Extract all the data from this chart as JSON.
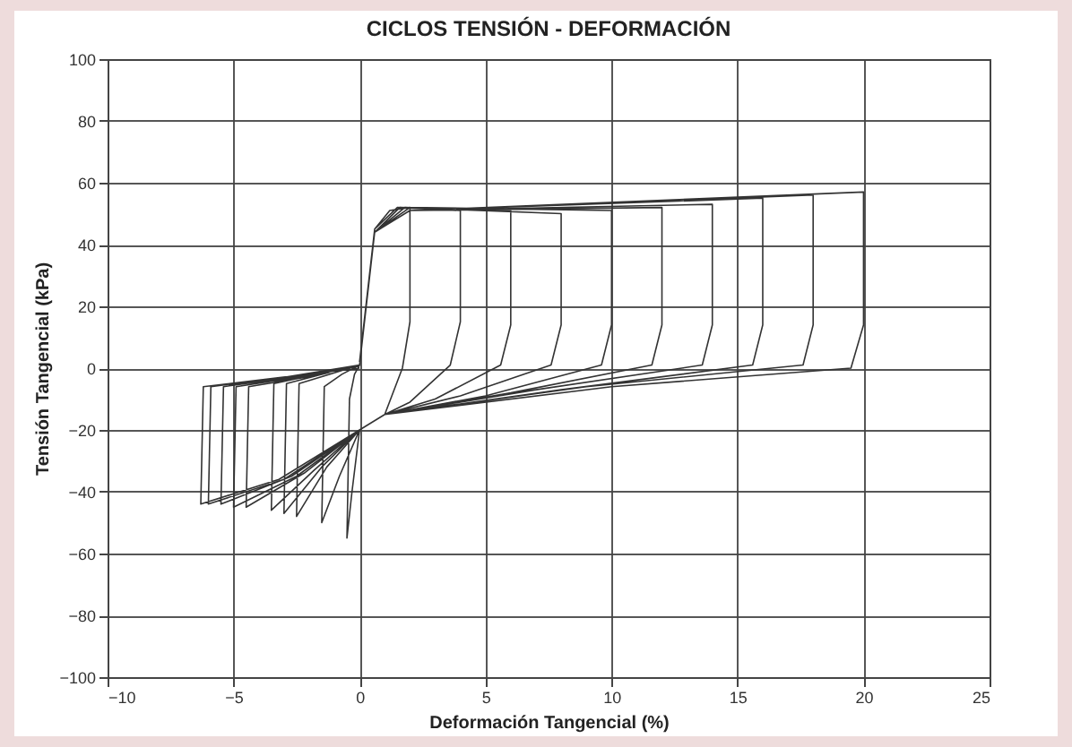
{
  "chart_data": {
    "type": "line",
    "title": "CICLOS TENSIÓN - DEFORMACIÓN",
    "xlabel": "Deformación  Tangencial (%)",
    "ylabel": "Tensión Tangencial (kPa)",
    "xlim": [
      -10,
      25
    ],
    "xticks": [
      -10,
      -5,
      0,
      5,
      10,
      15,
      20,
      25
    ],
    "ylim": [
      -100,
      100
    ],
    "yticks": [
      -100,
      -80,
      -60,
      -40,
      -20,
      0,
      20,
      40,
      60,
      80,
      100
    ],
    "grid": true,
    "series": [
      {
        "color": "#333333",
        "x": [
          0,
          0.6,
          1.2,
          2,
          2,
          1.7,
          1,
          0,
          -0.3,
          -0.5,
          -0.4,
          -0.2,
          0,
          0.6,
          1.5,
          4,
          4,
          3.6,
          2,
          1,
          0,
          -0.8,
          -1.5,
          -1.4,
          -0.7,
          0,
          0.6,
          1.6,
          6,
          6,
          5.6,
          3,
          1,
          0,
          -1.3,
          -2.5,
          -2.4,
          -1.2,
          0,
          0.6,
          1.8,
          8,
          8,
          7.6,
          4,
          1,
          0,
          -1.5,
          -3,
          -2.9,
          -1.5,
          0,
          0.6,
          2,
          10,
          10,
          9.6,
          5,
          1,
          0,
          -1.8,
          -3.5,
          -3.4,
          -1.7,
          0,
          0.6,
          2,
          12,
          12,
          11.6,
          6,
          1,
          0,
          -2.2,
          -4.5,
          -4.4,
          -2.2,
          0,
          0.6,
          2,
          14,
          14,
          13.6,
          7,
          1,
          0,
          -2.5,
          -5,
          -4.9,
          -2.5,
          0,
          0.6,
          2,
          16,
          16,
          15.6,
          8,
          1,
          0,
          -2.7,
          -5.5,
          -5.4,
          -2.7,
          0,
          0.6,
          2,
          18,
          18,
          17.6,
          9,
          1,
          0,
          -3,
          -6,
          -5.9,
          -3,
          0,
          0.6,
          2,
          20,
          20,
          19.5,
          10,
          1,
          0,
          -3.2,
          -6.3,
          -6.2,
          -3.1,
          0
        ],
        "values": [
          2,
          45,
          51,
          52,
          15,
          0,
          -15,
          -20,
          -40,
          -55,
          -10,
          -2,
          1,
          45,
          52,
          51,
          15,
          1,
          -11,
          -15,
          -20,
          -35,
          -50,
          -6,
          -2,
          1,
          44,
          52,
          51,
          14,
          1,
          -10,
          -15,
          -20,
          -32,
          -48,
          -5,
          -2,
          1,
          44,
          52,
          50,
          14,
          1,
          -9,
          -15,
          -20,
          -32,
          -47,
          -5,
          -2,
          1,
          44,
          52,
          51,
          14,
          1,
          -9,
          -15,
          -20,
          -33,
          -46,
          -5,
          -2,
          1,
          44,
          51,
          52,
          14,
          1,
          -8,
          -15,
          -20,
          -34,
          -45,
          -6,
          -3,
          1,
          44,
          51,
          53,
          14,
          1,
          -7,
          -15,
          -20,
          -35,
          -45,
          -6,
          -3,
          1,
          44,
          51,
          55,
          14,
          1,
          -7,
          -15,
          -20,
          -35,
          -44,
          -6,
          -3,
          1,
          44,
          51,
          56,
          14,
          1,
          -6,
          -15,
          -20,
          -36,
          -44,
          -6,
          -3,
          1,
          44,
          51,
          57,
          14,
          0,
          -6,
          -15,
          -20,
          -36,
          -44,
          -6,
          -3,
          0
        ]
      }
    ]
  }
}
